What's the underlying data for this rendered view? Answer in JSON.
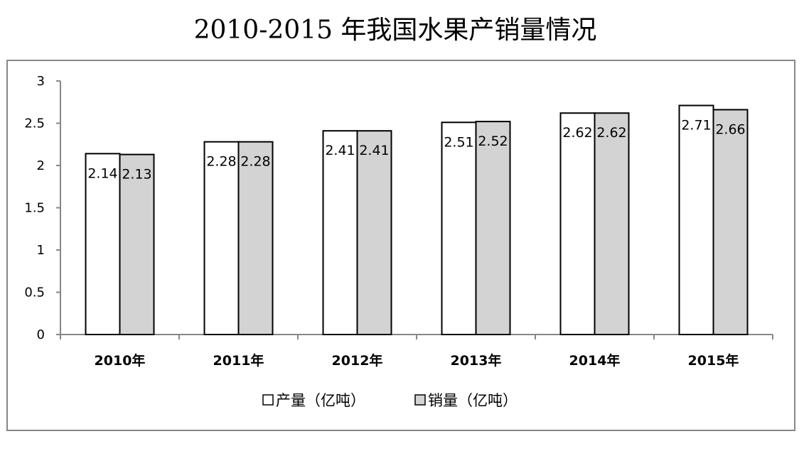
{
  "chart_data": {
    "type": "bar",
    "title": "2010-2015 年我国水果产销量情况",
    "categories": [
      "2010年",
      "2011年",
      "2012年",
      "2013年",
      "2014年",
      "2015年"
    ],
    "series": [
      {
        "name": "产量（亿吨）",
        "values": [
          2.14,
          2.28,
          2.41,
          2.51,
          2.62,
          2.71
        ],
        "color": "#ffffff"
      },
      {
        "name": "销量（亿吨）",
        "values": [
          2.13,
          2.28,
          2.41,
          2.52,
          2.62,
          2.66
        ],
        "color": "#d3d3d3"
      }
    ],
    "ylim": [
      0,
      3
    ],
    "yticks": [
      0,
      0.5,
      1,
      1.5,
      2,
      2.5,
      3
    ],
    "ytick_labels": [
      "0",
      "0.5",
      "1",
      "1.5",
      "2",
      "2.5",
      "3"
    ],
    "xlabel": "",
    "ylabel": "",
    "grid": false,
    "legend_position": "bottom",
    "border_color": "#878787"
  }
}
